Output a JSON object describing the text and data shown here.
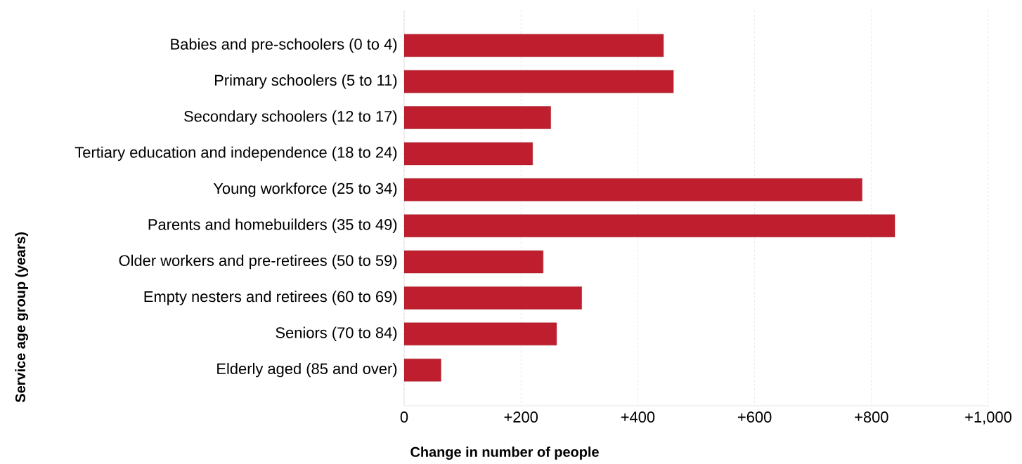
{
  "chart_data": {
    "type": "bar",
    "orientation": "horizontal",
    "categories": [
      "Babies and pre-schoolers (0 to 4)",
      "Primary schoolers (5 to 11)",
      "Secondary schoolers (12 to 17)",
      "Tertiary education and independence (18 to 24)",
      "Young workforce (25 to 34)",
      "Parents and homebuilders (35 to 49)",
      "Older workers and pre-retirees (50 to 59)",
      "Empty nesters and retirees (60 to 69)",
      "Seniors (70 to 84)",
      "Elderly aged (85 and over)"
    ],
    "values": [
      444,
      461,
      251,
      220,
      784,
      840,
      238,
      304,
      261,
      63
    ],
    "color": "#be1e2d",
    "xlim": [
      0,
      1000
    ],
    "xticks": [
      0,
      {
        "value": 200,
        "label": "+200"
      },
      {
        "value": 400,
        "label": "+400"
      },
      {
        "value": 600,
        "label": "+600"
      },
      {
        "value": 800,
        "label": "+800"
      },
      {
        "value": 1000,
        "label": "+1,000"
      }
    ],
    "xlabel": "Change in number of people",
    "ylabel": "Service age group (years)",
    "grid": "x"
  }
}
